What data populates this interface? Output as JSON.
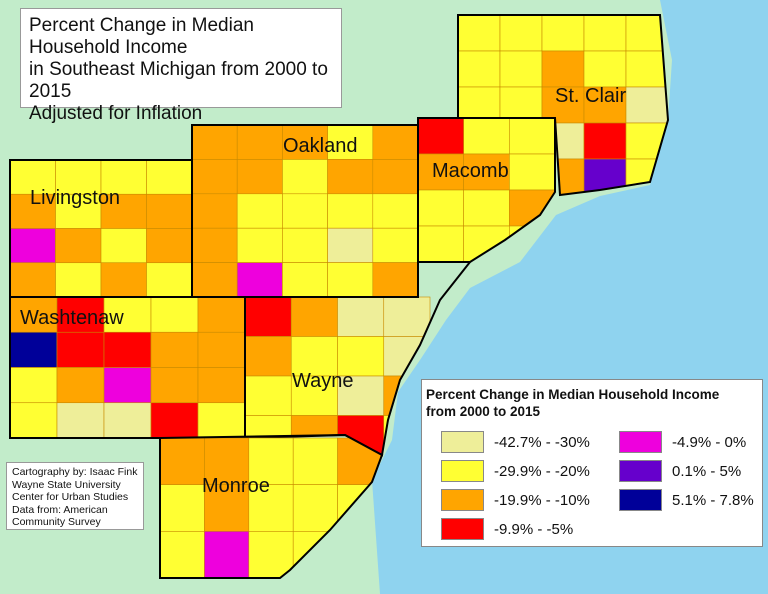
{
  "title": {
    "lines": [
      "Percent Change in Median Household Income",
      "in Southeast Michigan from 2000 to 2015",
      "Adjusted for Inflation"
    ]
  },
  "credits": {
    "lines": [
      "Cartography by: Isaac Fink",
      "Wayne State University",
      "Center for Urban Studies",
      "Data from: American",
      "Community Survey"
    ]
  },
  "legend": {
    "title_lines": [
      "Percent Change in Median Household Income",
      "from 2000 to 2015"
    ],
    "classes": [
      {
        "label": "-42.7% - -30%",
        "color": "#eeee99"
      },
      {
        "label": "-4.9% - 0%",
        "color": "#ee00dd"
      },
      {
        "label": "-29.9% - -20%",
        "color": "#ffff33"
      },
      {
        "label": "0.1% - 5%",
        "color": "#6600cc"
      },
      {
        "label": "-19.9% - -10%",
        "color": "#ffa500"
      },
      {
        "label": "5.1% - 7.8%",
        "color": "#000099"
      },
      {
        "label": "-9.9% - -5%",
        "color": "#ff0000"
      }
    ]
  },
  "colors": {
    "land": "#c2ecca",
    "water": "#8fd3ef",
    "boundary": "#000000"
  },
  "class_colors": [
    "#eeee99",
    "#ffff33",
    "#ffa500",
    "#ff0000",
    "#ee00dd",
    "#6600cc",
    "#000099"
  ],
  "counties": [
    {
      "name": "Livingston",
      "classes": [
        [
          1,
          1,
          1,
          1
        ],
        [
          2,
          1,
          2,
          2
        ],
        [
          4,
          2,
          1,
          2
        ],
        [
          2,
          1,
          2,
          1
        ]
      ]
    },
    {
      "name": "Oakland",
      "classes": [
        [
          2,
          2,
          2,
          1,
          2
        ],
        [
          2,
          2,
          1,
          2,
          2
        ],
        [
          2,
          1,
          1,
          1,
          1
        ],
        [
          2,
          1,
          1,
          0,
          1
        ],
        [
          2,
          4,
          1,
          1,
          2
        ]
      ]
    },
    {
      "name": "Macomb",
      "classes": [
        [
          3,
          1,
          1
        ],
        [
          2,
          2,
          1
        ],
        [
          1,
          1,
          2
        ],
        [
          1,
          1,
          1
        ]
      ]
    },
    {
      "name": "St. Clair",
      "classes": [
        [
          1,
          1,
          1,
          1,
          1
        ],
        [
          1,
          1,
          2,
          1,
          1
        ],
        [
          1,
          1,
          2,
          2,
          0
        ],
        [
          1,
          2,
          0,
          3,
          1
        ],
        [
          1,
          2,
          2,
          5,
          1
        ]
      ]
    },
    {
      "name": "Washtenaw",
      "classes": [
        [
          2,
          3,
          1,
          1,
          2
        ],
        [
          6,
          3,
          3,
          2,
          2
        ],
        [
          1,
          2,
          4,
          2,
          2
        ],
        [
          1,
          0,
          0,
          3,
          1
        ]
      ]
    },
    {
      "name": "Wayne",
      "classes": [
        [
          3,
          2,
          0,
          0
        ],
        [
          2,
          1,
          1,
          0
        ],
        [
          1,
          1,
          0,
          2
        ],
        [
          1,
          2,
          3,
          1
        ]
      ]
    },
    {
      "name": "Monroe",
      "classes": [
        [
          2,
          2,
          1,
          1,
          2
        ],
        [
          1,
          2,
          1,
          1,
          1
        ],
        [
          1,
          4,
          1,
          1,
          1
        ]
      ]
    }
  ]
}
